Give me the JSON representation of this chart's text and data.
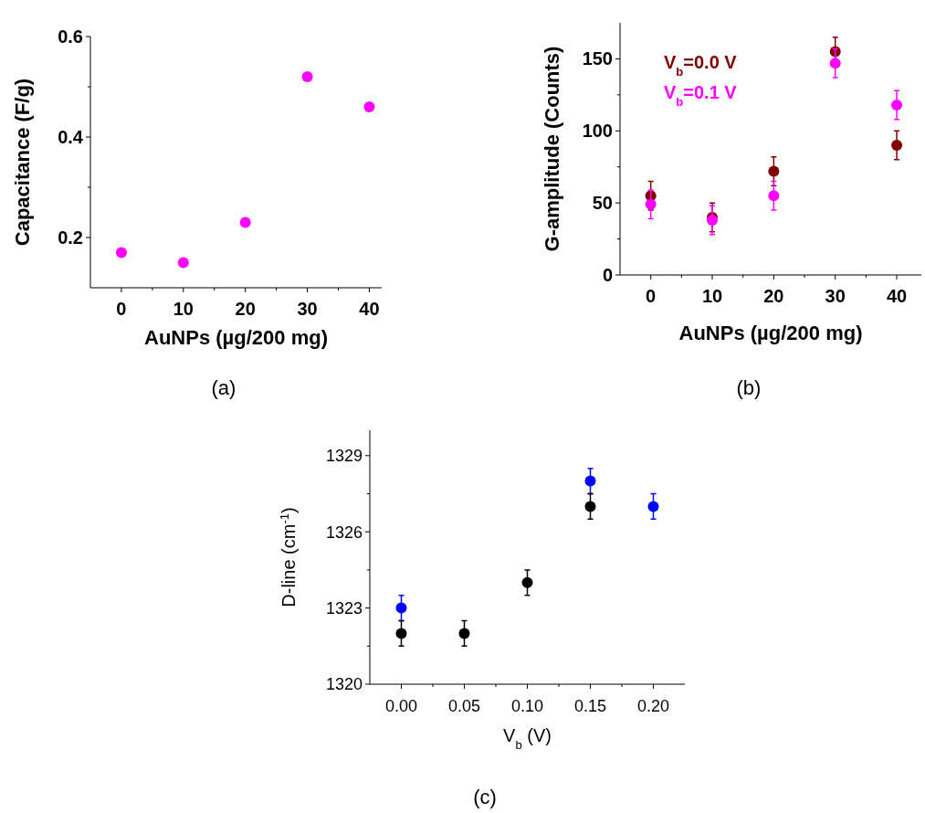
{
  "chart_data": [
    {
      "type": "scatter",
      "xlabel": "AuNPs (µg/200 mg)",
      "ylabel": "Capacitance (F/g)",
      "x": [
        0,
        10,
        20,
        30,
        40
      ],
      "xlim": [
        -5,
        42
      ],
      "xticks": [
        0,
        {
          "value": 5,
          "label": null
        },
        10,
        {
          "value": 15,
          "label": null
        },
        20,
        {
          "value": 25,
          "label": null
        },
        30,
        {
          "value": 35,
          "label": null
        },
        40
      ],
      "ylim": [
        0.1,
        0.6
      ],
      "yticks": [
        0.2,
        {
          "value": 0.3,
          "label": null
        },
        0.4,
        {
          "value": 0.5,
          "label": null
        },
        0.6
      ],
      "marker": "circle",
      "grid": false,
      "legend": false,
      "series": [
        {
          "color": "#ff00ff",
          "values": [
            0.17,
            0.15,
            0.23,
            0.52,
            0.46
          ]
        }
      ],
      "annotations": [
        "(a)"
      ]
    },
    {
      "type": "scatter",
      "xlabel": "AuNPs (µg/200 mg)",
      "ylabel": "G-amplitude (Counts)",
      "x": [
        0,
        10,
        20,
        30,
        40
      ],
      "xlim": [
        -5,
        44
      ],
      "xticks": [
        0,
        {
          "value": 5,
          "label": null
        },
        10,
        {
          "value": 15,
          "label": null
        },
        20,
        {
          "value": 25,
          "label": null
        },
        30,
        {
          "value": 35,
          "label": null
        },
        40
      ],
      "ylim": [
        0,
        175
      ],
      "yticks": [
        0,
        {
          "value": 25,
          "label": null
        },
        50,
        {
          "value": 75,
          "label": null
        },
        100,
        {
          "value": 125,
          "label": null
        },
        150
      ],
      "marker": "circle",
      "grid": false,
      "legend": "top left",
      "series": [
        {
          "name": "V$_{b}$=0.0 V",
          "color": "#800000",
          "values": [
            55,
            40,
            72,
            155,
            90
          ],
          "errors": [
            10,
            10,
            10,
            10,
            10
          ]
        },
        {
          "name": "V$_{b}$=0.1 V",
          "color": "#ff00ff",
          "values": [
            49,
            38,
            55,
            147,
            118
          ],
          "errors": [
            10,
            10,
            10,
            10,
            10
          ]
        }
      ],
      "annotations": [
        "(b)"
      ]
    },
    {
      "type": "scatter",
      "xlabel": "V$_{b}$ (V)",
      "ylabel": "D-line (cm$^{-1}$)",
      "x": [
        0,
        0.05,
        0.1,
        0.15,
        0.2
      ],
      "xlim": [
        -0.025,
        0.225
      ],
      "xticks": [
        {
          "value": 0,
          "label": "0.00"
        },
        {
          "value": 0.025,
          "label": null
        },
        {
          "value": 0.05,
          "label": "0.05"
        },
        {
          "value": 0.075,
          "label": null
        },
        {
          "value": 0.1,
          "label": "0.10"
        },
        {
          "value": 0.125,
          "label": null
        },
        {
          "value": 0.15,
          "label": "0.15"
        },
        {
          "value": 0.175,
          "label": null
        },
        {
          "value": 0.2,
          "label": "0.20"
        }
      ],
      "ylim": [
        1320,
        1330
      ],
      "yticks": [
        1320,
        {
          "value": 1321.5,
          "label": null
        },
        1323,
        {
          "value": 1324.5,
          "label": null
        },
        1326,
        {
          "value": 1327.5,
          "label": null
        },
        1329
      ],
      "marker": "circle",
      "grid": false,
      "legend": false,
      "series": [
        {
          "color": "#0000ff",
          "values": [
            1323,
            null,
            null,
            1328,
            1327
          ],
          "errors": [
            0.5,
            null,
            null,
            0.5,
            0.5
          ]
        },
        {
          "color": "#000000",
          "values": [
            1322,
            1322,
            1324,
            1327,
            null
          ],
          "errors": [
            0.5,
            0.5,
            0.5,
            0.5,
            null
          ]
        }
      ],
      "annotations": [
        "(c)"
      ]
    }
  ]
}
